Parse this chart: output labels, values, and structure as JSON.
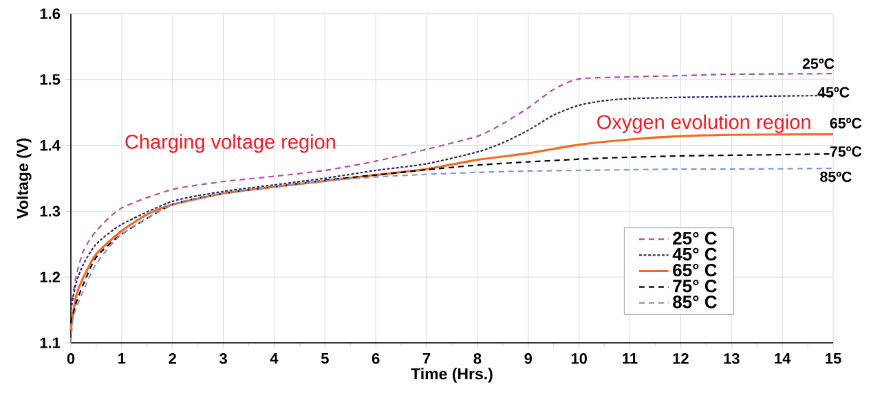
{
  "chart_data": {
    "type": "line",
    "xlabel": "Time (Hrs.)",
    "ylabel": "Voltage (V)",
    "xlim": [
      0,
      15
    ],
    "ylim": [
      1.1,
      1.6
    ],
    "xticks": [
      0,
      1,
      2,
      3,
      4,
      5,
      6,
      7,
      8,
      9,
      10,
      11,
      12,
      13,
      14,
      15
    ],
    "yticks": [
      1.1,
      1.2,
      1.3,
      1.4,
      1.5,
      1.6
    ],
    "grid": true,
    "legend": "bottom right",
    "marker": "none",
    "series": [
      {
        "name": "25° C",
        "color": "#b04fa8",
        "line_style": "dashed",
        "x": [
          0,
          0.1,
          0.25,
          0.5,
          1,
          2,
          3,
          4,
          5,
          6,
          7,
          8,
          8.5,
          9,
          9.5,
          10,
          11,
          12,
          13,
          15
        ],
        "values": [
          1.15,
          1.2,
          1.24,
          1.27,
          1.305,
          1.333,
          1.345,
          1.353,
          1.362,
          1.376,
          1.394,
          1.414,
          1.433,
          1.457,
          1.485,
          1.501,
          1.504,
          1.506,
          1.508,
          1.509
        ]
      },
      {
        "name": "45° C",
        "color": "#27286b",
        "line_style": "dotted",
        "x": [
          0,
          0.1,
          0.25,
          0.5,
          1,
          2,
          3,
          4,
          5,
          6,
          7,
          8,
          8.5,
          9,
          9.5,
          10,
          10.5,
          11,
          12,
          13,
          15
        ],
        "values": [
          1.15,
          1.19,
          1.22,
          1.25,
          1.28,
          1.315,
          1.33,
          1.34,
          1.35,
          1.362,
          1.372,
          1.39,
          1.404,
          1.423,
          1.446,
          1.461,
          1.468,
          1.471,
          1.473,
          1.474,
          1.476
        ]
      },
      {
        "name": "65° C",
        "color": "#f26b21",
        "line_style": "solid",
        "x": [
          0,
          0.1,
          0.25,
          0.5,
          1,
          1.5,
          2,
          3,
          4,
          5,
          6,
          7,
          8,
          9,
          10,
          11,
          12,
          13,
          15
        ],
        "values": [
          1.12,
          1.17,
          1.2,
          1.235,
          1.27,
          1.295,
          1.31,
          1.327,
          1.337,
          1.346,
          1.355,
          1.364,
          1.378,
          1.388,
          1.401,
          1.409,
          1.414,
          1.416,
          1.417
        ]
      },
      {
        "name": "75° C",
        "color": "#000000",
        "line_style": "dashed",
        "x": [
          0,
          0.1,
          0.25,
          0.5,
          1,
          2,
          3,
          4,
          5,
          6,
          7,
          8,
          9,
          10,
          11,
          12,
          13,
          15
        ],
        "values": [
          1.13,
          1.16,
          1.19,
          1.23,
          1.265,
          1.31,
          1.327,
          1.337,
          1.347,
          1.355,
          1.363,
          1.37,
          1.375,
          1.379,
          1.382,
          1.384,
          1.385,
          1.387
        ]
      },
      {
        "name": "85° C",
        "color": "#7f96cf",
        "line_style": "dashed",
        "x": [
          0,
          0.05,
          0.25,
          0.5,
          1,
          2,
          3,
          4,
          5,
          6,
          7,
          8,
          9,
          10,
          11,
          12,
          13,
          15
        ],
        "values": [
          1.1,
          1.14,
          1.18,
          1.22,
          1.265,
          1.31,
          1.327,
          1.337,
          1.346,
          1.352,
          1.356,
          1.359,
          1.361,
          1.362,
          1.363,
          1.364,
          1.364,
          1.365
        ]
      }
    ],
    "annotations": [
      "Charging voltage region",
      "Oxygen evolution region",
      "25ºC",
      "45ºC",
      "65ºC",
      "75ºC",
      "85ºC"
    ]
  }
}
